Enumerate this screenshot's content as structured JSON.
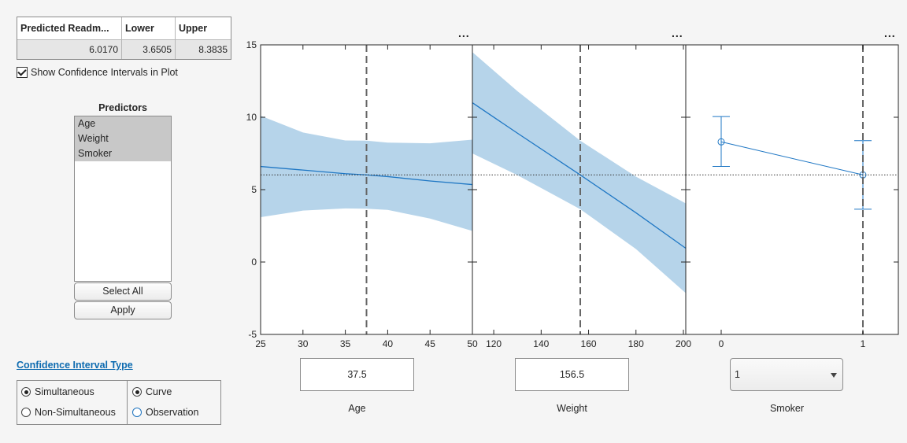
{
  "results_table": {
    "headers": [
      "Predicted Readm...",
      "Lower",
      "Upper"
    ],
    "values": [
      "6.0170",
      "3.6505",
      "8.3835"
    ]
  },
  "show_ci_label": "Show Confidence Intervals in Plot",
  "show_ci_checked": true,
  "predictors": {
    "title": "Predictors",
    "items": [
      "Age",
      "Weight",
      "Smoker"
    ],
    "select_all_label": "Select All",
    "apply_label": "Apply"
  },
  "ci_type": {
    "title": "Confidence Interval Type",
    "bounds": {
      "simultaneous": "Simultaneous",
      "non_simultaneous": "Non-Simultaneous",
      "selected": "Simultaneous"
    },
    "prediction": {
      "curve": "Curve",
      "observation": "Observation",
      "selected": "Curve"
    }
  },
  "more_options": "...",
  "chart_data": [
    {
      "type": "line",
      "xlabel": "Age",
      "x_ticks": [
        25,
        30,
        35,
        40,
        45,
        50
      ],
      "xlim": [
        25,
        50
      ],
      "ylim": [
        -5,
        15
      ],
      "y_ticks": [
        -5,
        0,
        5,
        10,
        15
      ],
      "x": [
        25,
        30,
        35,
        37.5,
        40,
        45,
        50
      ],
      "y": [
        6.6,
        6.35,
        6.1,
        6.02,
        5.9,
        5.6,
        5.35
      ],
      "lower": [
        3.1,
        3.55,
        3.7,
        3.68,
        3.6,
        3.0,
        2.15
      ],
      "upper": [
        10.1,
        8.95,
        8.4,
        8.38,
        8.25,
        8.2,
        8.45
      ],
      "current_x": 37.5,
      "current_y": 6.017,
      "value_box": "37.5"
    },
    {
      "type": "line",
      "xlabel": "Weight",
      "x_ticks": [
        120,
        140,
        160,
        180,
        200
      ],
      "xlim": [
        111,
        201
      ],
      "x": [
        111,
        130,
        156.5,
        180,
        201
      ],
      "y": [
        11.0,
        8.9,
        6.017,
        3.4,
        0.95
      ],
      "lower": [
        7.5,
        6.0,
        3.65,
        0.9,
        -2.15
      ],
      "upper": [
        14.5,
        11.8,
        8.38,
        5.9,
        4.05
      ],
      "current_x": 156.5,
      "current_y": 6.017,
      "value_box": "156.5"
    },
    {
      "type": "scatter",
      "xlabel": "Smoker",
      "x_ticks": [
        0,
        1
      ],
      "xlim": [
        -0.25,
        1.25
      ],
      "x": [
        0,
        1
      ],
      "y": [
        8.3,
        6.017
      ],
      "lower": [
        6.6,
        3.65
      ],
      "upper": [
        10.05,
        8.38
      ],
      "current_x": 1,
      "current_y": 6.017,
      "value_box": "1"
    }
  ],
  "colors": {
    "line": "#1f77c4",
    "band": "#b6d4ea"
  }
}
